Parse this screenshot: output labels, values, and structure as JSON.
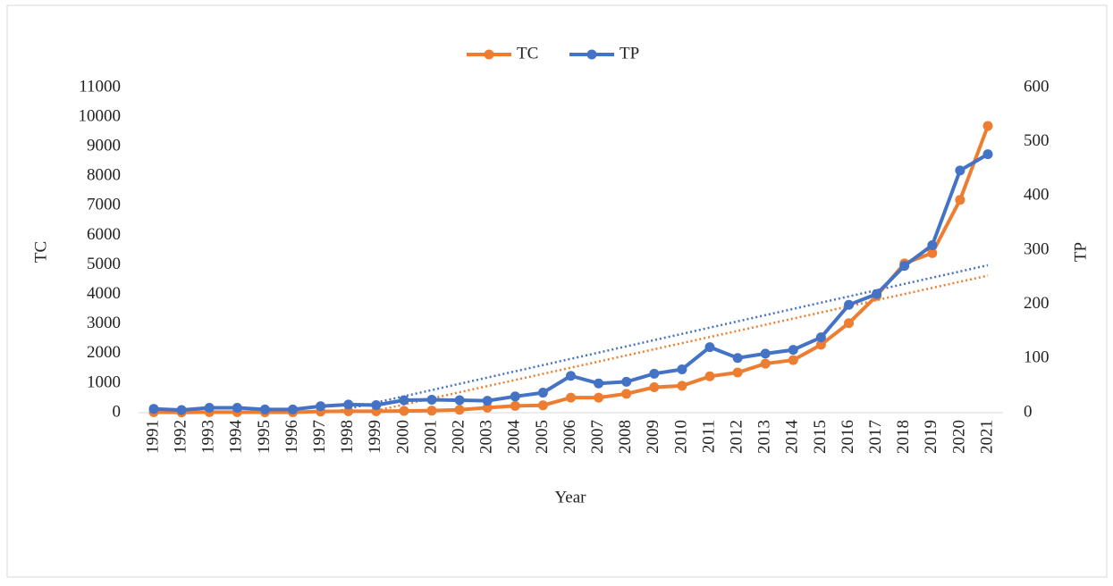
{
  "chart_data": {
    "type": "line",
    "categories": [
      "1991",
      "1992",
      "1993",
      "1994",
      "1995",
      "1996",
      "1997",
      "1998",
      "1999",
      "2000",
      "2001",
      "2002",
      "2003",
      "2004",
      "2005",
      "2006",
      "2007",
      "2008",
      "2009",
      "2010",
      "2011",
      "2012",
      "2013",
      "2014",
      "2015",
      "2016",
      "2017",
      "2018",
      "2019",
      "2020",
      "2021"
    ],
    "series": [
      {
        "name": "TC",
        "color": "#ed7d31",
        "axis": "y",
        "values": [
          20,
          10,
          20,
          20,
          15,
          15,
          40,
          50,
          50,
          60,
          70,
          100,
          170,
          230,
          250,
          510,
          510,
          640,
          860,
          910,
          1230,
          1360,
          1660,
          1780,
          2300,
          3030,
          3950,
          5050,
          5400,
          7200,
          9700
        ]
      },
      {
        "name": "TP",
        "color": "#4472c4",
        "axis": "y2",
        "values": [
          7,
          5,
          9,
          9,
          6,
          6,
          12,
          15,
          14,
          23,
          24,
          23,
          22,
          30,
          37,
          68,
          54,
          57,
          72,
          80,
          121,
          101,
          109,
          116,
          139,
          199,
          219,
          271,
          309,
          447,
          477
        ]
      }
    ],
    "trendline": true,
    "xlabel": "Year",
    "ylabel": "TC",
    "y2label": "TP",
    "ylim": [
      0,
      11000
    ],
    "yticks": [
      0,
      1000,
      2000,
      3000,
      4000,
      5000,
      6000,
      7000,
      8000,
      9000,
      10000,
      11000
    ],
    "y2lim": [
      0,
      600
    ],
    "y2ticks": [
      0,
      100,
      200,
      300,
      400,
      500,
      600
    ],
    "legend": "top"
  }
}
